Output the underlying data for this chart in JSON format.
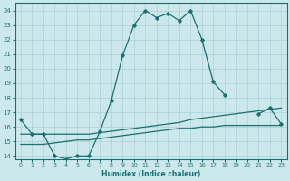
{
  "title": "",
  "xlabel": "Humidex (Indice chaleur)",
  "xlim": [
    -0.5,
    23.5
  ],
  "ylim": [
    13.8,
    24.5
  ],
  "yticks": [
    14,
    15,
    16,
    17,
    18,
    19,
    20,
    21,
    22,
    23,
    24
  ],
  "xticks": [
    0,
    1,
    2,
    3,
    4,
    5,
    6,
    7,
    8,
    9,
    10,
    11,
    12,
    13,
    14,
    15,
    16,
    17,
    18,
    19,
    20,
    21,
    22,
    23
  ],
  "bg_color": "#cce8ec",
  "grid_color": "#aad0d8",
  "line_color": "#1a7070",
  "line1_x": [
    0,
    1,
    2,
    3,
    4,
    5,
    6,
    7,
    8,
    9,
    10,
    11,
    12,
    13,
    14,
    15,
    16,
    17,
    18,
    19,
    20,
    21,
    22,
    23
  ],
  "line1_y": [
    16.5,
    15.5,
    15.5,
    14.0,
    13.8,
    14.0,
    14.0,
    15.7,
    17.8,
    20.9,
    23.0,
    24.0,
    23.5,
    23.8,
    23.3,
    24.0,
    22.0,
    19.1,
    18.2,
    null,
    null,
    16.9,
    17.3,
    16.2
  ],
  "line2_x": [
    0,
    1,
    2,
    3,
    4,
    5,
    6,
    7,
    8,
    9,
    10,
    11,
    12,
    13,
    14,
    15,
    16,
    17,
    18,
    19,
    20,
    21,
    22,
    23
  ],
  "line2_y": [
    15.5,
    15.5,
    15.5,
    15.5,
    15.5,
    15.5,
    15.5,
    15.6,
    15.7,
    15.8,
    15.9,
    16.0,
    16.1,
    16.2,
    16.3,
    16.5,
    16.6,
    16.7,
    16.8,
    16.9,
    17.0,
    17.1,
    17.2,
    17.3
  ],
  "line3_x": [
    0,
    1,
    2,
    3,
    4,
    5,
    6,
    7,
    8,
    9,
    10,
    11,
    12,
    13,
    14,
    15,
    16,
    17,
    18,
    19,
    20,
    21,
    22,
    23
  ],
  "line3_y": [
    14.8,
    14.8,
    14.8,
    14.9,
    15.0,
    15.1,
    15.1,
    15.2,
    15.3,
    15.4,
    15.5,
    15.6,
    15.7,
    15.8,
    15.9,
    15.9,
    16.0,
    16.0,
    16.1,
    16.1,
    16.1,
    16.1,
    16.1,
    16.1
  ],
  "marker_x1": [
    0,
    1,
    2,
    3,
    4,
    5,
    6,
    7,
    8,
    9,
    10,
    11,
    12,
    13,
    14,
    15,
    16,
    17,
    18,
    21,
    22,
    23
  ],
  "marker_y1": [
    16.5,
    15.5,
    15.5,
    14.0,
    13.8,
    14.0,
    14.0,
    15.7,
    17.8,
    20.9,
    23.0,
    24.0,
    23.5,
    23.8,
    23.3,
    24.0,
    22.0,
    19.1,
    18.2,
    16.9,
    17.3,
    16.2
  ]
}
